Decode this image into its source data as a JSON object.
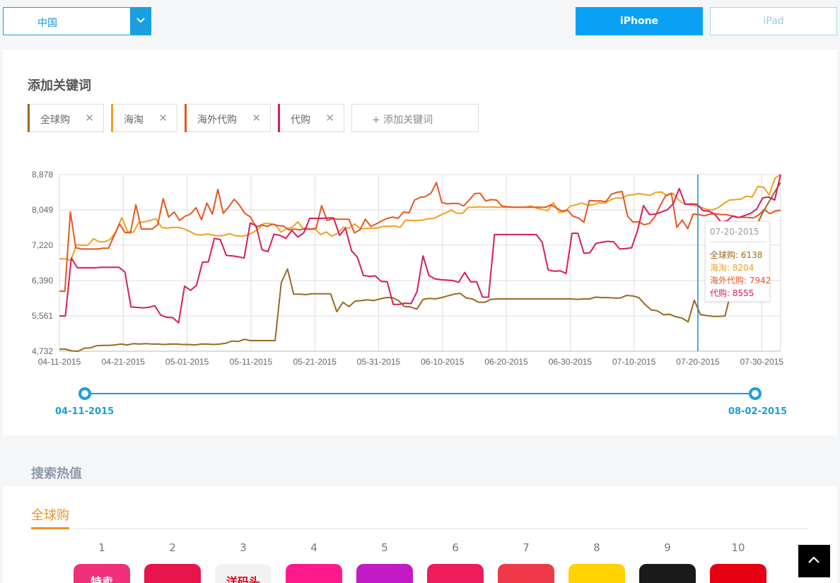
{
  "header": {
    "country": "中国",
    "device_tabs": [
      "iPhone",
      "iPad"
    ],
    "active_device": "iPhone"
  },
  "keywords_panel": {
    "title": "添加关键词",
    "tags": [
      {
        "label": "全球购",
        "color": "#9a6a1f"
      },
      {
        "label": "海淘",
        "color": "#f0a021"
      },
      {
        "label": "海外代购",
        "color": "#e5561f"
      },
      {
        "label": "代购",
        "color": "#d81b60"
      }
    ],
    "add_label": "+ 添加关键词"
  },
  "chart_data": {
    "type": "line",
    "yticks": [
      "8,878",
      "8,049",
      "7,220",
      "6,390",
      "5,561",
      "4,732"
    ],
    "ylim": [
      4732,
      8878
    ],
    "xticks": [
      "04-11-2015",
      "04-21-2015",
      "05-01-2015",
      "05-11-2015",
      "05-21-2015",
      "05-31-2015",
      "06-10-2015",
      "06-20-2015",
      "06-30-2015",
      "07-10-2015",
      "07-20-2015",
      "07-30-2015"
    ],
    "x_start": "04-11-2015",
    "x_end": "08-02-2015",
    "series": [
      {
        "name": "全球购",
        "color": "#9a6a1f",
        "values": [
          4780,
          4780,
          4740,
          4730,
          4800,
          4810,
          4860,
          4870,
          4870,
          4880,
          4900,
          4880,
          4910,
          4900,
          4910,
          4900,
          4900,
          4890,
          4900,
          4900,
          4890,
          4890,
          4880,
          4900,
          4900,
          4890,
          4900,
          4920,
          4970,
          4960,
          5010,
          4980,
          4980,
          4980,
          4980,
          4980,
          6340,
          6660,
          6070,
          6070,
          6060,
          6080,
          6080,
          6080,
          6080,
          5660,
          5880,
          5780,
          5910,
          5920,
          5940,
          5920,
          5960,
          5990,
          5990,
          5920,
          5780,
          5770,
          5720,
          5950,
          5970,
          5960,
          5990,
          6030,
          6070,
          6090,
          5980,
          5960,
          5880,
          5880,
          5950,
          5960,
          5960,
          5960,
          5960,
          5960,
          5960,
          5960,
          5960,
          5960,
          5960,
          5960,
          5960,
          5960,
          5950,
          5960,
          5960,
          6000,
          5990,
          5990,
          5980,
          5980,
          6040,
          6030,
          5990,
          5830,
          5700,
          5680,
          5590,
          5600,
          5540,
          5510,
          5420,
          5930,
          5590,
          5570,
          5550,
          5550,
          5560,
          6170,
          6590,
          6940,
          7280,
          7640,
          7960,
          8210,
          8460,
          8690
        ]
      },
      {
        "name": "海淘",
        "color": "#f0a021",
        "values": [
          6900,
          6900,
          6860,
          7230,
          7220,
          7220,
          7370,
          7300,
          7300,
          7360,
          7550,
          7870,
          7540,
          7520,
          7750,
          7770,
          7800,
          7840,
          7640,
          7620,
          7640,
          7640,
          7600,
          7540,
          7470,
          7460,
          7480,
          7460,
          7440,
          7450,
          7490,
          7440,
          7430,
          7450,
          7510,
          7600,
          7730,
          7730,
          7700,
          7530,
          7610,
          7640,
          7770,
          7590,
          7590,
          7600,
          7470,
          7530,
          7430,
          7500,
          7640,
          7620,
          7720,
          7610,
          7610,
          7620,
          7620,
          7660,
          7660,
          7670,
          7640,
          7810,
          7800,
          7800,
          7810,
          7840,
          7850,
          7920,
          7980,
          8040,
          7970,
          7970,
          8110,
          8110,
          8120,
          8110,
          8120,
          8110,
          8110,
          8110,
          8110,
          8110,
          8110,
          8140,
          8090,
          8060,
          8030,
          8220,
          7990,
          8010,
          8140,
          8170,
          8210,
          8160,
          8170,
          8220,
          8200,
          8280,
          8330,
          8320,
          8390,
          8400,
          8430,
          8410,
          8390,
          8460,
          8470,
          8380,
          8440,
          8290,
          8190,
          8170,
          8150,
          8110,
          8060,
          8050,
          8100,
          8200,
          8280,
          8290,
          8300,
          8370,
          8350,
          8600,
          8580,
          8400,
          8790,
          8880
        ]
      },
      {
        "name": "海外代购",
        "color": "#e5561f",
        "values": [
          6140,
          6140,
          8000,
          7160,
          7130,
          7130,
          7130,
          7130,
          7150,
          7150,
          7440,
          7720,
          7520,
          7510,
          8170,
          7600,
          7600,
          7600,
          7700,
          8310,
          7880,
          8000,
          7800,
          7900,
          7950,
          8100,
          7820,
          8210,
          7950,
          8530,
          7970,
          8120,
          8300,
          8150,
          7960,
          7880,
          7640,
          7700,
          7660,
          7710,
          7680,
          7670,
          7580,
          7600,
          7580,
          7620,
          7600,
          7620,
          8150,
          7800,
          7840,
          7830,
          7830,
          7830,
          7510,
          7580,
          7830,
          7660,
          7720,
          7790,
          7850,
          7880,
          7850,
          8000,
          7980,
          8280,
          8340,
          8360,
          8440,
          8690,
          8220,
          8190,
          8200,
          8200,
          8140,
          8280,
          8430,
          8440,
          8260,
          8290,
          8280,
          8140,
          8120,
          8110,
          8110,
          8110,
          8110,
          8110,
          8110,
          8110,
          8170,
          8090,
          8020,
          8040,
          7900,
          7860,
          7760,
          8270,
          8260,
          8260,
          8240,
          8410,
          8460,
          8480,
          7900,
          7760,
          7770,
          7700,
          7730,
          7890,
          8160,
          8390,
          8440,
          7640,
          7810,
          7610,
          7950,
          7940,
          7910,
          7950,
          7960,
          7940,
          7940,
          7910,
          7870,
          7880,
          7870,
          7860,
          7930,
          8060,
          7960,
          8020,
          8040
        ]
      },
      {
        "name": "代购",
        "color": "#d81b60",
        "values": [
          5560,
          5560,
          6920,
          6690,
          6690,
          6690,
          6690,
          6700,
          6700,
          6700,
          6700,
          6590,
          5770,
          5760,
          5750,
          5760,
          5800,
          5580,
          5530,
          5520,
          5400,
          6260,
          6160,
          6280,
          6820,
          6830,
          7380,
          7350,
          6980,
          6970,
          6950,
          6920,
          7740,
          7680,
          7110,
          7070,
          7480,
          7450,
          7380,
          7570,
          7410,
          7510,
          7850,
          7850,
          7850,
          7860,
          7860,
          7450,
          7620,
          7090,
          6940,
          6510,
          6490,
          6500,
          6370,
          6360,
          5830,
          5830,
          5860,
          5850,
          6130,
          6970,
          6510,
          6430,
          6410,
          6400,
          6390,
          6350,
          6580,
          6360,
          6360,
          6000,
          6000,
          7470,
          7470,
          7470,
          7470,
          7470,
          7470,
          7470,
          7470,
          7290,
          6640,
          6610,
          6620,
          6560,
          7500,
          7500,
          7030,
          7040,
          7260,
          7290,
          7310,
          7300,
          7130,
          7140,
          7160,
          7570,
          8150,
          7940,
          7950,
          8000,
          8050,
          8200,
          8550,
          8180,
          8190,
          8180,
          8030,
          8020,
          7940,
          7760,
          7790,
          7910,
          7870,
          7920,
          7970,
          8070,
          8330,
          8350,
          8280,
          8880
        ]
      }
    ],
    "crosshair_date": "07-20-2015"
  },
  "tooltip": {
    "date": "07-20-2015",
    "rows": [
      {
        "name": "全球购",
        "value": "6138",
        "color": "#9a6a1f"
      },
      {
        "name": "海淘",
        "value": "8204",
        "color": "#f0a021"
      },
      {
        "name": "海外代购",
        "value": "7942",
        "color": "#e5561f"
      },
      {
        "name": "代购",
        "value": "8555",
        "color": "#d81b60"
      }
    ]
  },
  "range_slider": {
    "start": "04-11-2015",
    "end": "08-02-2015"
  },
  "hot_section": {
    "title": "搜索热值",
    "tab": "全球购",
    "ranks": [
      "1",
      "2",
      "3",
      "4",
      "5",
      "6",
      "7",
      "8",
      "9",
      "10"
    ],
    "icons": [
      {
        "name": "app-1-icon",
        "color": "#f0307a",
        "glyph": "特卖"
      },
      {
        "name": "app-2-icon",
        "color": "#e8144c",
        "glyph": ""
      },
      {
        "name": "app-3-icon",
        "color": "#f2f2f2",
        "glyph": "洋码头"
      },
      {
        "name": "app-4-icon",
        "color": "#ff1a8c",
        "glyph": ""
      },
      {
        "name": "app-5-icon",
        "color": "#c21ac4",
        "glyph": ""
      },
      {
        "name": "app-6-icon",
        "color": "#ee1c5a",
        "glyph": ""
      },
      {
        "name": "app-7-icon",
        "color": "#f0394b",
        "glyph": ""
      },
      {
        "name": "app-8-icon",
        "color": "#ffd200",
        "glyph": ""
      },
      {
        "name": "app-9-icon",
        "color": "#1a1a1a",
        "glyph": ""
      },
      {
        "name": "app-10-icon",
        "color": "#e60012",
        "glyph": ""
      }
    ]
  }
}
